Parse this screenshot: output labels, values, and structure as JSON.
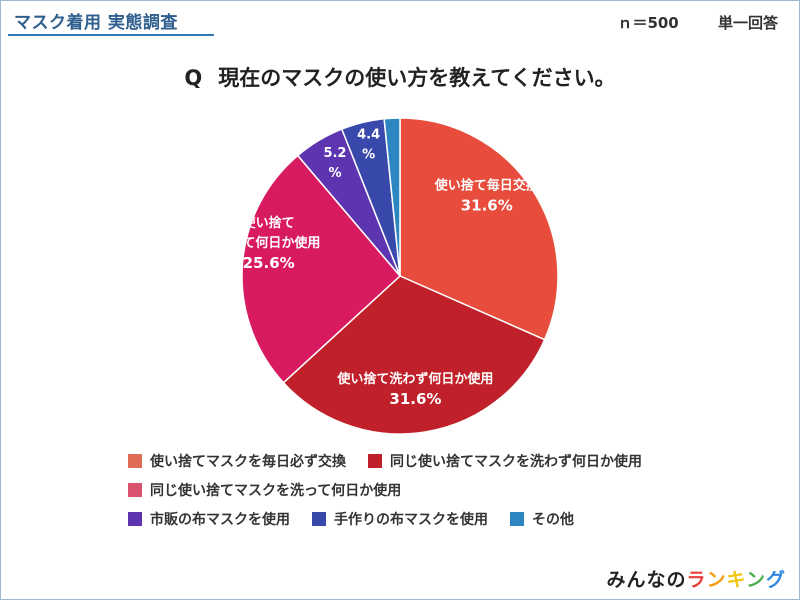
{
  "header": {
    "title": "マスク着用 実態調査",
    "sample": "ｎ＝500",
    "answer_type": "単一回答"
  },
  "question": {
    "mark": "Q",
    "text": "現在のマスクの使い方を教えてください。"
  },
  "chart_data": {
    "type": "pie",
    "unit": "%",
    "slices": [
      {
        "name": "使い捨てマスクを毎日必ず交換",
        "label_lines": [
          "使い捨て毎日交換"
        ],
        "value": 31.6,
        "value_text": "31.6%",
        "color": "#e74c3c"
      },
      {
        "name": "同じ使い捨てマスクを洗わず何日か使用",
        "label_lines": [
          "使い捨て洗わず何日か使用"
        ],
        "value": 31.6,
        "value_text": "31.6%",
        "color": "#c0202a"
      },
      {
        "name": "同じ使い捨てマスクを洗って何日か使用",
        "label_lines": [
          "使い捨て",
          "洗って何日か使用"
        ],
        "value": 25.6,
        "value_text": "25.6%",
        "color": "#d81b60"
      },
      {
        "name": "市販の布マスクを使用",
        "label_lines": [],
        "value": 5.2,
        "value_text": "5.2\n%",
        "color": "#5e35b1"
      },
      {
        "name": "手作りの布マスクを使用",
        "label_lines": [],
        "value": 4.4,
        "value_text": "4.4\n%",
        "color": "#3949ab"
      },
      {
        "name": "その他",
        "label_lines": [],
        "value": 1.6,
        "value_text": "",
        "color": "#2e86c1"
      }
    ]
  },
  "legend_rows": [
    [
      "使い捨てマスクを毎日必ず交換",
      "同じ使い捨てマスクを洗わず何日か使用"
    ],
    [
      "同じ使い捨てマスクを洗って何日か使用"
    ],
    [
      "市販の布マスクを使用",
      "手作りの布マスクを使用",
      "その他"
    ]
  ],
  "legend_colors": {
    "使い捨てマスクを毎日必ず交換": "#e06c55",
    "同じ使い捨てマスクを洗わず何日か使用": "#c0202a",
    "同じ使い捨てマスクを洗って何日か使用": "#d9536f",
    "市販の布マスクを使用": "#5e35b1",
    "手作りの布マスクを使用": "#3949ab",
    "その他": "#2e86c1"
  },
  "brand": {
    "prefix": "みんなの",
    "chars": [
      "ラ",
      "ン",
      "キ",
      "ン",
      "グ"
    ]
  }
}
